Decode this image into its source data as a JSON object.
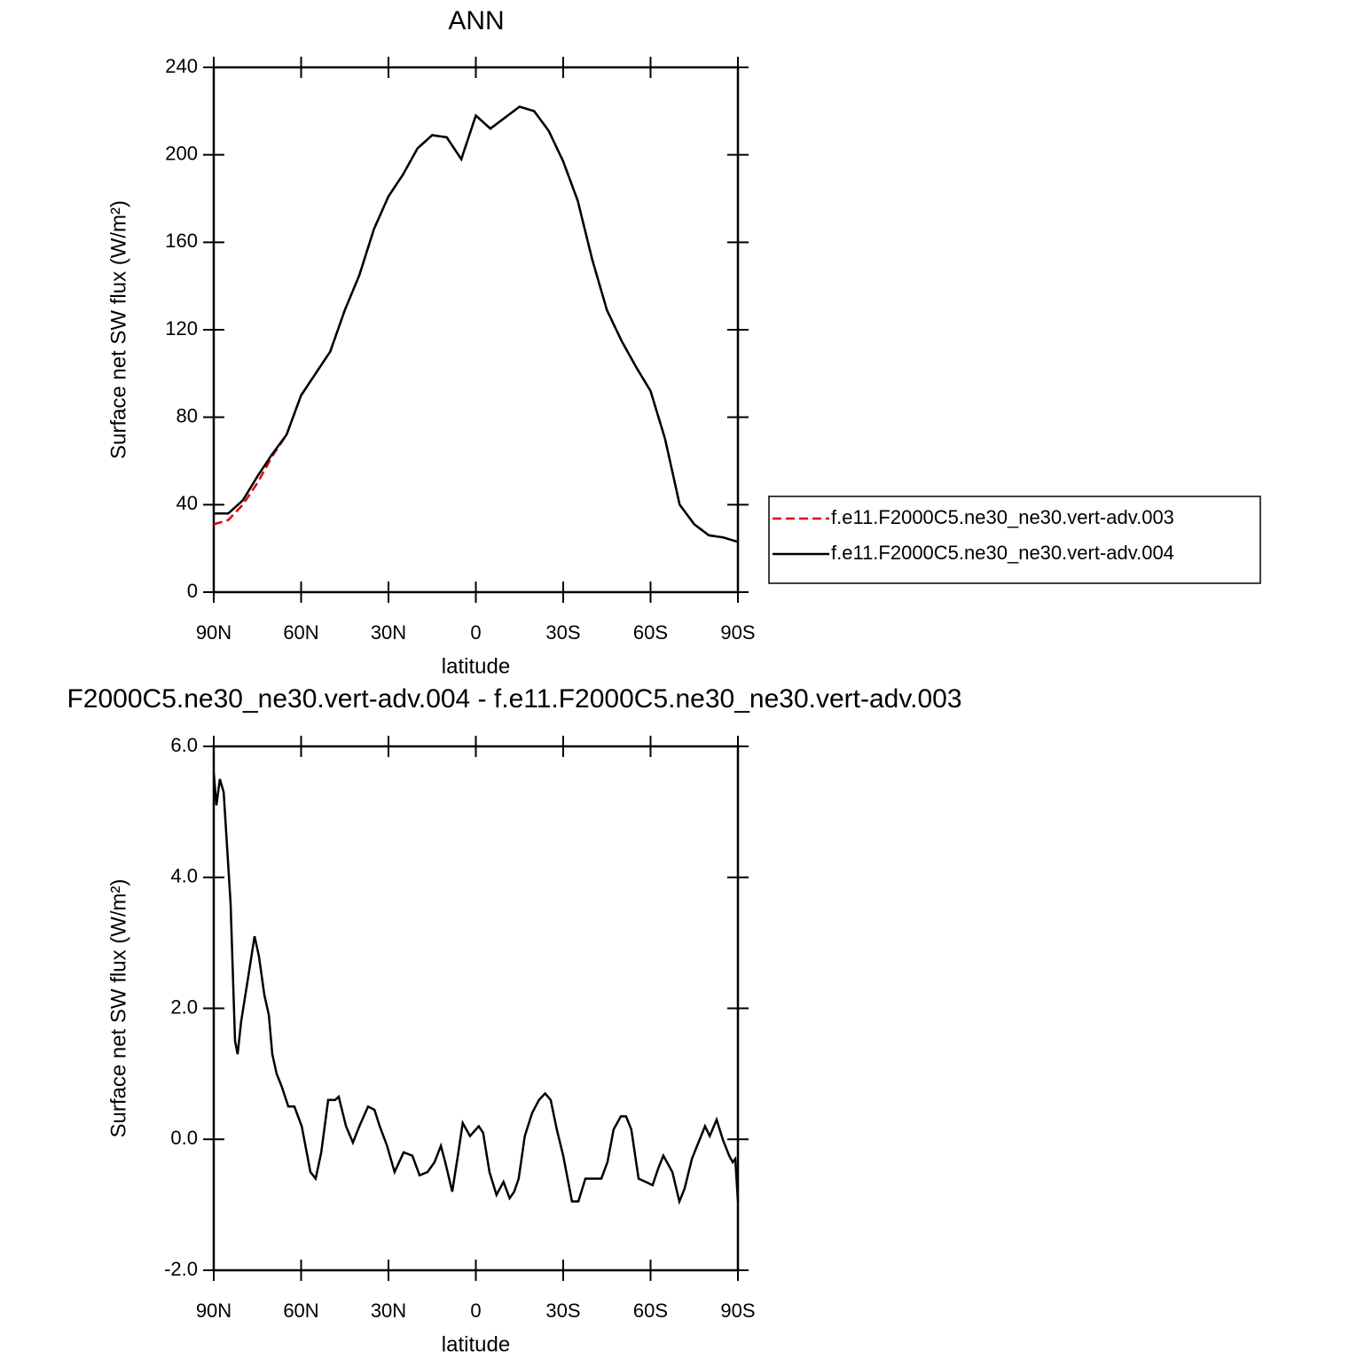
{
  "chart_data": [
    {
      "type": "line",
      "title": "ANN",
      "xlabel": "latitude",
      "ylabel": "Surface net SW flux (W/m²)",
      "x": [
        90,
        85,
        80,
        75,
        70,
        65,
        60,
        55,
        50,
        45,
        40,
        35,
        30,
        25,
        20,
        15,
        10,
        5,
        0,
        -5,
        -10,
        -15,
        -20,
        -25,
        -30,
        -35,
        -40,
        -45,
        -50,
        -55,
        -60,
        -65,
        -70,
        -75,
        -80,
        -85,
        -90
      ],
      "series": [
        {
          "name": "f.e11.F2000C5.ne30_ne30.vert-adv.003",
          "color": "#e00000",
          "line_style": "dashed",
          "values": [
            31,
            33,
            40,
            50,
            62,
            72,
            90,
            100,
            110,
            129,
            145,
            166,
            181,
            191,
            203,
            209,
            208,
            198,
            218,
            212,
            217,
            222,
            220,
            211,
            197,
            179,
            152,
            129,
            115,
            103,
            92,
            70,
            40,
            31,
            26,
            25,
            23
          ]
        },
        {
          "name": "f.e11.F2000C5.ne30_ne30.vert-adv.004",
          "color": "#000000",
          "line_style": "solid",
          "values": [
            36,
            36,
            42,
            53,
            63,
            72,
            90,
            100,
            110,
            129,
            145,
            166,
            181,
            191,
            203,
            209,
            208,
            198,
            218,
            212,
            217,
            222,
            220,
            211,
            197,
            179,
            152,
            129,
            115,
            103,
            92,
            70,
            40,
            31,
            26,
            25,
            23
          ]
        }
      ],
      "xlim": [
        90,
        -90
      ],
      "xticks": [
        {
          "value": 90,
          "label": "90N"
        },
        {
          "value": 60,
          "label": "60N"
        },
        {
          "value": 30,
          "label": "30N"
        },
        0,
        {
          "value": -30,
          "label": "30S"
        },
        {
          "value": -60,
          "label": "60S"
        },
        {
          "value": -90,
          "label": "90S"
        }
      ],
      "ylim": [
        0,
        240
      ],
      "yticks": [
        0,
        40,
        80,
        120,
        160,
        200,
        240
      ],
      "legend": "right"
    },
    {
      "type": "line",
      "title": "F2000C5.ne30_ne30.vert-adv.004 - f.e11.F2000C5.ne30_ne30.vert-adv.003",
      "xlabel": "latitude",
      "ylabel": "Surface net SW flux (W/m²)",
      "x": [
        90,
        89.1,
        87.9,
        86.6,
        84.2,
        82.7,
        81.8,
        80.6,
        78.1,
        76.0,
        74.5,
        72.6,
        71.1,
        69.9,
        68.4,
        66.6,
        64.4,
        62.3,
        59.8,
        56.8,
        55.0,
        53.1,
        50.7,
        48.3,
        47.1,
        44.6,
        42.2,
        40.0,
        37.0,
        34.8,
        33.0,
        30.5,
        27.9,
        24.8,
        21.8,
        19.3,
        16.6,
        14.2,
        12.0,
        10.5,
        8.1,
        6.0,
        4.5,
        2.0,
        -1.0,
        -2.5,
        -4.7,
        -7.1,
        -9.5,
        -11.6,
        -13.2,
        -14.7,
        -16.8,
        -19.3,
        -21.7,
        -23.8,
        -25.7,
        -27.8,
        -30.0,
        -33.0,
        -35.2,
        -37.6,
        -40.6,
        -43.1,
        -45.2,
        -47.3,
        -49.8,
        -51.6,
        -53.4,
        -55.9,
        -58.3,
        -60.7,
        -62.6,
        -64.4,
        -67.5,
        -69.9,
        -71.7,
        -74.2,
        -76.0,
        -78.7,
        -80.3,
        -82.7,
        -84.8,
        -87.0,
        -88.2,
        -89.1,
        -90
      ],
      "series": [
        {
          "color": "#000000",
          "line_style": "solid",
          "values": [
            5.6,
            5.1,
            5.5,
            5.3,
            3.6,
            1.5,
            1.3,
            1.8,
            2.5,
            3.1,
            2.8,
            2.2,
            1.9,
            1.3,
            1.0,
            0.8,
            0.5,
            0.5,
            0.2,
            -0.5,
            -0.6,
            -0.2,
            0.6,
            0.6,
            0.65,
            0.2,
            -0.05,
            0.2,
            0.5,
            0.45,
            0.2,
            -0.1,
            -0.5,
            -0.2,
            -0.25,
            -0.55,
            -0.5,
            -0.35,
            -0.1,
            -0.35,
            -0.8,
            -0.2,
            0.25,
            0.05,
            0.2,
            0.1,
            -0.5,
            -0.85,
            -0.65,
            -0.9,
            -0.8,
            -0.6,
            0.05,
            0.4,
            0.6,
            0.7,
            0.6,
            0.15,
            -0.25,
            -0.95,
            -0.95,
            -0.6,
            -0.6,
            -0.6,
            -0.35,
            0.15,
            0.35,
            0.35,
            0.15,
            -0.6,
            -0.65,
            -0.7,
            -0.45,
            -0.25,
            -0.5,
            -0.95,
            -0.75,
            -0.3,
            -0.1,
            0.2,
            0.05,
            0.3,
            0.0,
            -0.25,
            -0.35,
            -0.3,
            -0.95
          ]
        }
      ],
      "xlim": [
        90,
        -90
      ],
      "xticks": [
        {
          "value": 90,
          "label": "90N"
        },
        {
          "value": 60,
          "label": "60N"
        },
        {
          "value": 30,
          "label": "30N"
        },
        0,
        {
          "value": -30,
          "label": "30S"
        },
        {
          "value": -60,
          "label": "60S"
        },
        {
          "value": -90,
          "label": "90S"
        }
      ],
      "ylim": [
        -2,
        6
      ],
      "yticks": [
        {
          "value": -2,
          "label": "-2.0"
        },
        {
          "value": 0,
          "label": "0.0"
        },
        {
          "value": 2,
          "label": "2.0"
        },
        {
          "value": 4,
          "label": "4.0"
        },
        {
          "value": 6,
          "label": "6.0"
        }
      ]
    }
  ]
}
